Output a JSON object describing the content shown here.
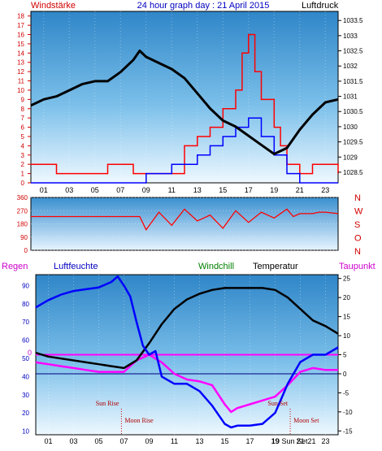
{
  "header": {
    "left_title": "Windstärke",
    "center_title": "24 hour graph day : 21 April 2015",
    "right_title": "Luftdruck"
  },
  "chart_data": [
    {
      "type": "line",
      "panel": "wind-pressure",
      "x_ticks": [
        "01",
        "03",
        "05",
        "07",
        "09",
        "11",
        "13",
        "15",
        "17",
        "19",
        "21",
        "23"
      ],
      "x_range": [
        0,
        24
      ],
      "wind_axis": {
        "ticks": [
          0,
          1,
          2,
          3,
          4,
          5,
          6,
          7,
          8,
          9,
          10,
          11,
          12,
          13,
          14,
          15,
          16,
          17,
          18
        ],
        "range": [
          0,
          18.5
        ]
      },
      "pressure_axis": {
        "ticks": [
          1028.5,
          1029,
          1029.5,
          1030,
          1030.5,
          1031,
          1031.5,
          1032,
          1032.5,
          1033,
          1033.5
        ],
        "range": [
          1028.15,
          1033.8
        ]
      },
      "series": [
        {
          "color": "#000000",
          "x": [
            0,
            1,
            2,
            3,
            4,
            5,
            6,
            7,
            8,
            8.5,
            9,
            10,
            11,
            12,
            13,
            14,
            15,
            16,
            17,
            18,
            19,
            20,
            21,
            22,
            23,
            24
          ],
          "values": [
            1030.7,
            1030.9,
            1031.0,
            1031.2,
            1031.4,
            1031.5,
            1031.5,
            1031.8,
            1032.2,
            1032.5,
            1032.3,
            1032.1,
            1031.9,
            1031.6,
            1031.1,
            1030.6,
            1030.2,
            1030.0,
            1029.7,
            1029.4,
            1029.1,
            1029.3,
            1029.9,
            1030.4,
            1030.8,
            1030.9
          ]
        },
        {
          "color": "#ff0000",
          "x": [
            0,
            2,
            4,
            6,
            8,
            10,
            12,
            13,
            14,
            15,
            16,
            16.5,
            17,
            17.5,
            18,
            19,
            19.5,
            20,
            21,
            22,
            23,
            24
          ],
          "values": [
            2,
            1,
            1,
            2,
            1,
            1,
            4,
            5,
            6,
            8,
            10,
            14,
            16,
            12,
            9,
            6,
            4,
            2,
            1,
            2,
            2,
            1
          ]
        },
        {
          "color": "#0000ff",
          "x": [
            0,
            8,
            9,
            10,
            11,
            12,
            13,
            14,
            15,
            16,
            17,
            18,
            19,
            20,
            21,
            22,
            24
          ],
          "values": [
            0,
            0,
            1,
            1,
            2,
            2,
            3,
            4,
            5,
            6,
            7,
            5,
            3,
            1,
            0,
            0,
            0
          ]
        }
      ]
    },
    {
      "type": "line",
      "panel": "wind-direction",
      "y_ticks": [
        0,
        90,
        180,
        270,
        360
      ],
      "y_range": [
        0,
        360
      ],
      "direction_labels": [
        "N",
        "W",
        "S",
        "O",
        "N"
      ],
      "series": [
        {
          "color": "#ff0000",
          "x": [
            0,
            8.5,
            9,
            10,
            11,
            12,
            13,
            14,
            15,
            16,
            17,
            18,
            19,
            20,
            20.5,
            21,
            22,
            22.5,
            23,
            24
          ],
          "values": [
            230,
            230,
            140,
            260,
            170,
            280,
            200,
            240,
            150,
            270,
            190,
            260,
            220,
            280,
            230,
            250,
            250,
            260,
            260,
            250
          ]
        }
      ]
    },
    {
      "type": "line",
      "panel": "humidity-temperature",
      "labels": {
        "rain": "Regen",
        "humidity": "Luftfeuchte",
        "windchill": "Windchill",
        "temperature": "Temperatur",
        "dewpoint": "Taupunkt"
      },
      "left_axis": {
        "ticks": [
          10,
          20,
          30,
          40,
          50,
          60,
          70,
          80,
          90
        ],
        "range": [
          8,
          96
        ]
      },
      "right_axis": {
        "ticks": [
          -15,
          -10,
          -5,
          0,
          5,
          10,
          15,
          20,
          25
        ],
        "range": [
          -16,
          26
        ]
      },
      "rain_marker": "0",
      "x_ticks": [
        "01",
        "03",
        "05",
        "07",
        "09",
        "11",
        "13",
        "15",
        "17",
        "19",
        "21",
        "23"
      ],
      "x_range": [
        0,
        24
      ],
      "events": [
        {
          "label": "Sun Rise",
          "x": 6.8,
          "row": 1
        },
        {
          "label": "Moon Rise",
          "x": 6.8,
          "row": 2
        },
        {
          "label": "Sun Set",
          "x": 20.2,
          "row": 1
        },
        {
          "label": "Moon Set",
          "x": 20.2,
          "row": 2
        }
      ],
      "bottom_label": "19 Sun Set21",
      "series": [
        {
          "name": "Luftfeuchte",
          "color": "#0000ff",
          "x": [
            0,
            1,
            2,
            3,
            4,
            5,
            6,
            6.5,
            7,
            7.5,
            8,
            8.5,
            9,
            9.5,
            10,
            11,
            12,
            13,
            14,
            15,
            15.5,
            16,
            17,
            18,
            19,
            19.5,
            20,
            21,
            22,
            23,
            24
          ],
          "values": [
            78,
            82,
            85,
            87,
            88,
            89,
            92,
            95,
            90,
            84,
            70,
            57,
            52,
            54,
            40,
            36,
            36,
            32,
            24,
            14,
            12,
            13,
            13,
            14,
            20,
            28,
            36,
            48,
            52,
            52,
            56
          ]
        },
        {
          "name": "Temperatur",
          "color": "#000000",
          "x": [
            0,
            1,
            2,
            3,
            4,
            5,
            6,
            7,
            8,
            9,
            10,
            11,
            12,
            13,
            14,
            15,
            16,
            17,
            18,
            19,
            20,
            21,
            22,
            23,
            24
          ],
          "values": [
            5.5,
            4.5,
            4,
            3.5,
            3,
            2.5,
            2,
            1.5,
            3.5,
            8,
            13,
            17,
            19.5,
            21,
            22,
            22.5,
            22.5,
            22.5,
            22.5,
            22,
            20,
            17,
            14,
            12.5,
            10.5
          ]
        },
        {
          "name": "Taupunkt",
          "color": "#ff00ff",
          "x": [
            0,
            1,
            2,
            3,
            4,
            5,
            6,
            7,
            8,
            9,
            10,
            11,
            12,
            13,
            14,
            15,
            15.5,
            16,
            17,
            18,
            19,
            20,
            21,
            22,
            23,
            24
          ],
          "values": [
            3,
            2.5,
            2,
            1.5,
            1,
            0.5,
            0.5,
            0.5,
            3.5,
            5,
            3,
            0,
            -1.5,
            -2,
            -3,
            -8,
            -10,
            -9,
            -8,
            -7,
            -6,
            -3,
            0.5,
            1.5,
            1,
            1
          ]
        },
        {
          "name": "Windchill",
          "color": "#008000",
          "x": [
            0,
            24
          ],
          "values": [
            5.5,
            10.5
          ]
        },
        {
          "name": "zero",
          "color": "#000080",
          "x": [
            0,
            24
          ],
          "values": [
            0,
            0
          ]
        },
        {
          "name": "rain",
          "color": "#ff00ff",
          "x": [
            0,
            24
          ],
          "values": [
            5,
            5
          ]
        }
      ]
    }
  ]
}
